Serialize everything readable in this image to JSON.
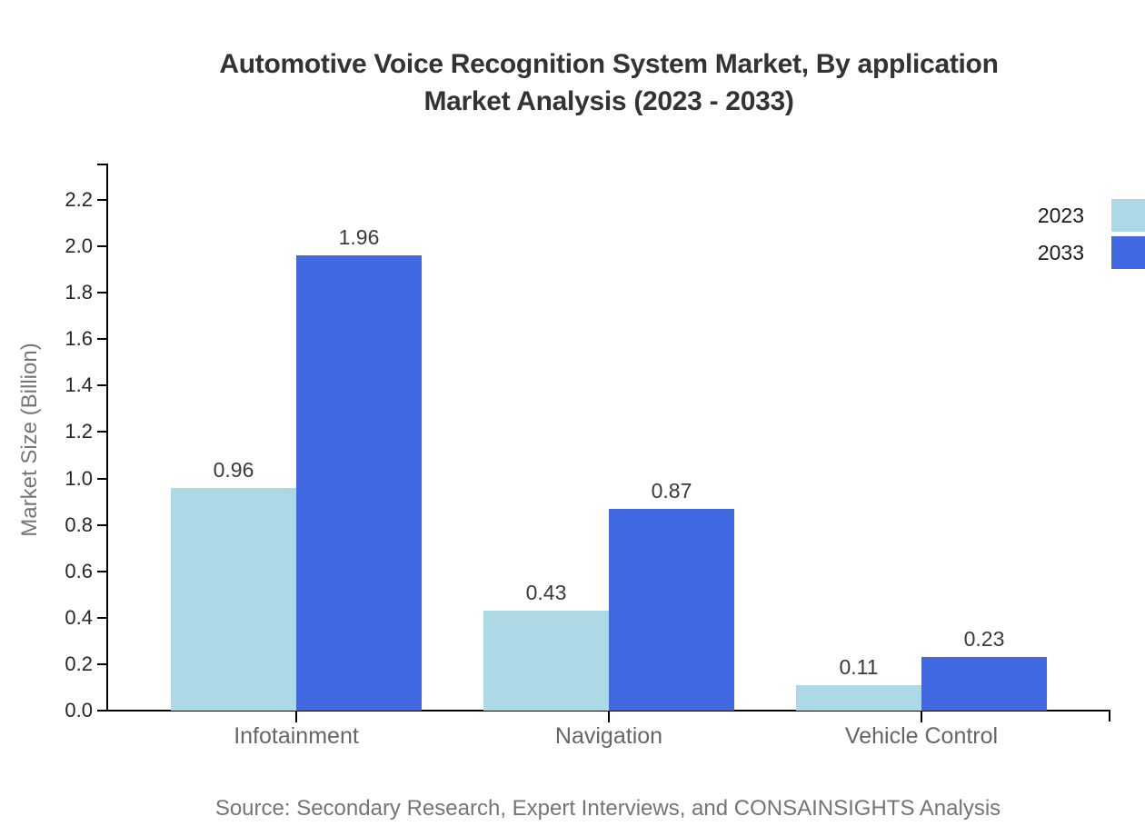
{
  "title": {
    "line1": "Automotive Voice Recognition System Market, By application",
    "line2": "Market Analysis (2023 - 2033)"
  },
  "source": "Source: Secondary Research, Expert Interviews, and CONSAINSIGHTS Analysis",
  "colors": {
    "title": "#333333",
    "axis": "#000000",
    "ytick_label": "#262626",
    "value_label": "#3a3a3a",
    "category_label": "#666666",
    "ylabel": "#767676",
    "legend_label": "#1a1a1a",
    "source": "#757575",
    "series_2023": "#ADD8E6",
    "series_2033": "#4169E1",
    "background": "#ffffff"
  },
  "chart_data": {
    "type": "bar",
    "title": "Automotive Voice Recognition System Market, By application Market Analysis (2023 - 2033)",
    "categories": [
      "Infotainment",
      "Navigation",
      "Vehicle Control"
    ],
    "series": [
      {
        "name": "2023",
        "color": "#ADD8E6",
        "values": [
          0.96,
          0.43,
          0.11
        ]
      },
      {
        "name": "2033",
        "color": "#4169E1",
        "values": [
          1.96,
          0.87,
          0.23
        ]
      }
    ],
    "value_labels": [
      "0.96",
      "1.96",
      "0.43",
      "0.87",
      "0.11",
      "0.23"
    ],
    "xlabel": "",
    "ylabel": "Market Size (Billion)",
    "ylim": [
      0,
      2.35
    ],
    "yticks": [
      "0.0",
      "0.2",
      "0.4",
      "0.6",
      "0.8",
      "1.0",
      "1.2",
      "1.4",
      "1.6",
      "1.8",
      "2.0",
      "2.2"
    ],
    "grid": false,
    "legend_position": "upper-right-outside",
    "footnote": "Source: Secondary Research, Expert Interviews, and CONSAINSIGHTS Analysis"
  }
}
